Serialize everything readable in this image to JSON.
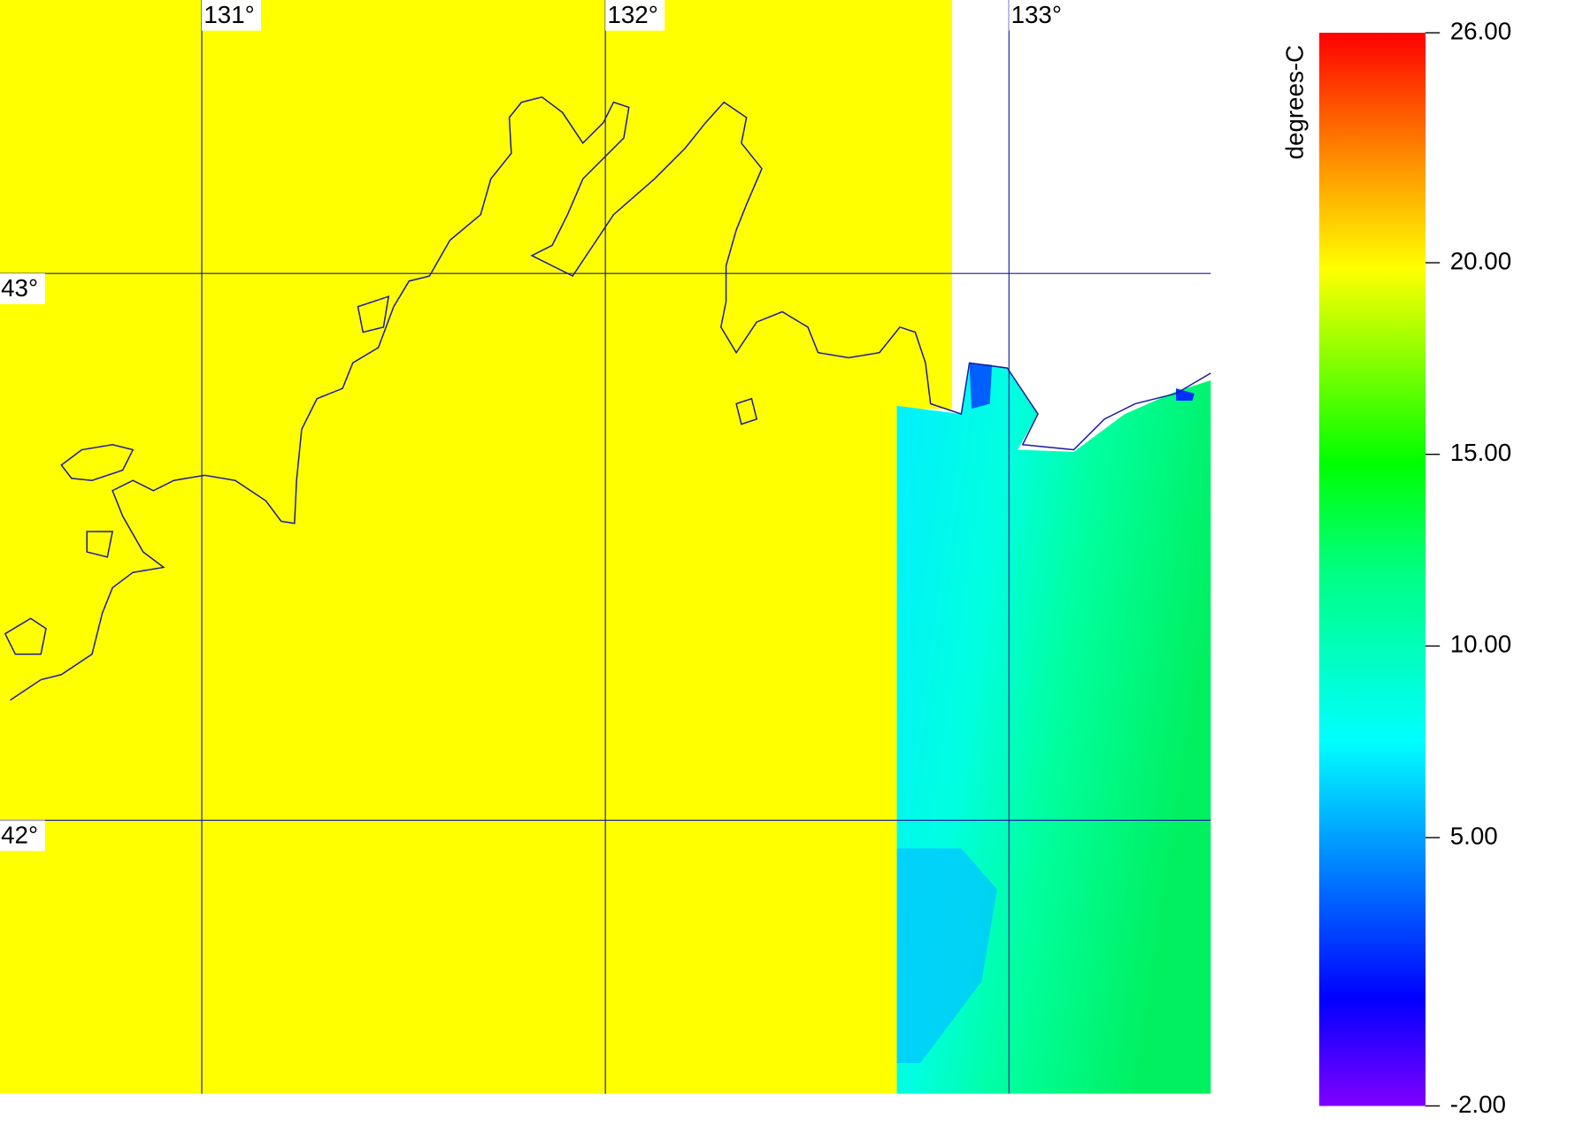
{
  "map": {
    "unit_label": "degrees-C",
    "xlim": [
      130.5,
      133.5
    ],
    "ylim": [
      41.5,
      43.5
    ],
    "lon_ticks": [
      {
        "value": 131,
        "label": "131°"
      },
      {
        "value": 132,
        "label": "132°"
      },
      {
        "value": 133,
        "label": "133°"
      }
    ],
    "lat_ticks": [
      {
        "value": 43,
        "label": "43°"
      },
      {
        "value": 42,
        "label": "42°"
      }
    ],
    "colorbar": {
      "range": [
        -2,
        26
      ],
      "ticks": [
        {
          "value": -2,
          "label": "-2.00"
        },
        {
          "value": 5,
          "label": "5.00"
        },
        {
          "value": 10,
          "label": "10.00"
        },
        {
          "value": 15,
          "label": "15.00"
        },
        {
          "value": 20,
          "label": "20.00"
        },
        {
          "value": 26,
          "label": "26.00"
        }
      ]
    }
  }
}
